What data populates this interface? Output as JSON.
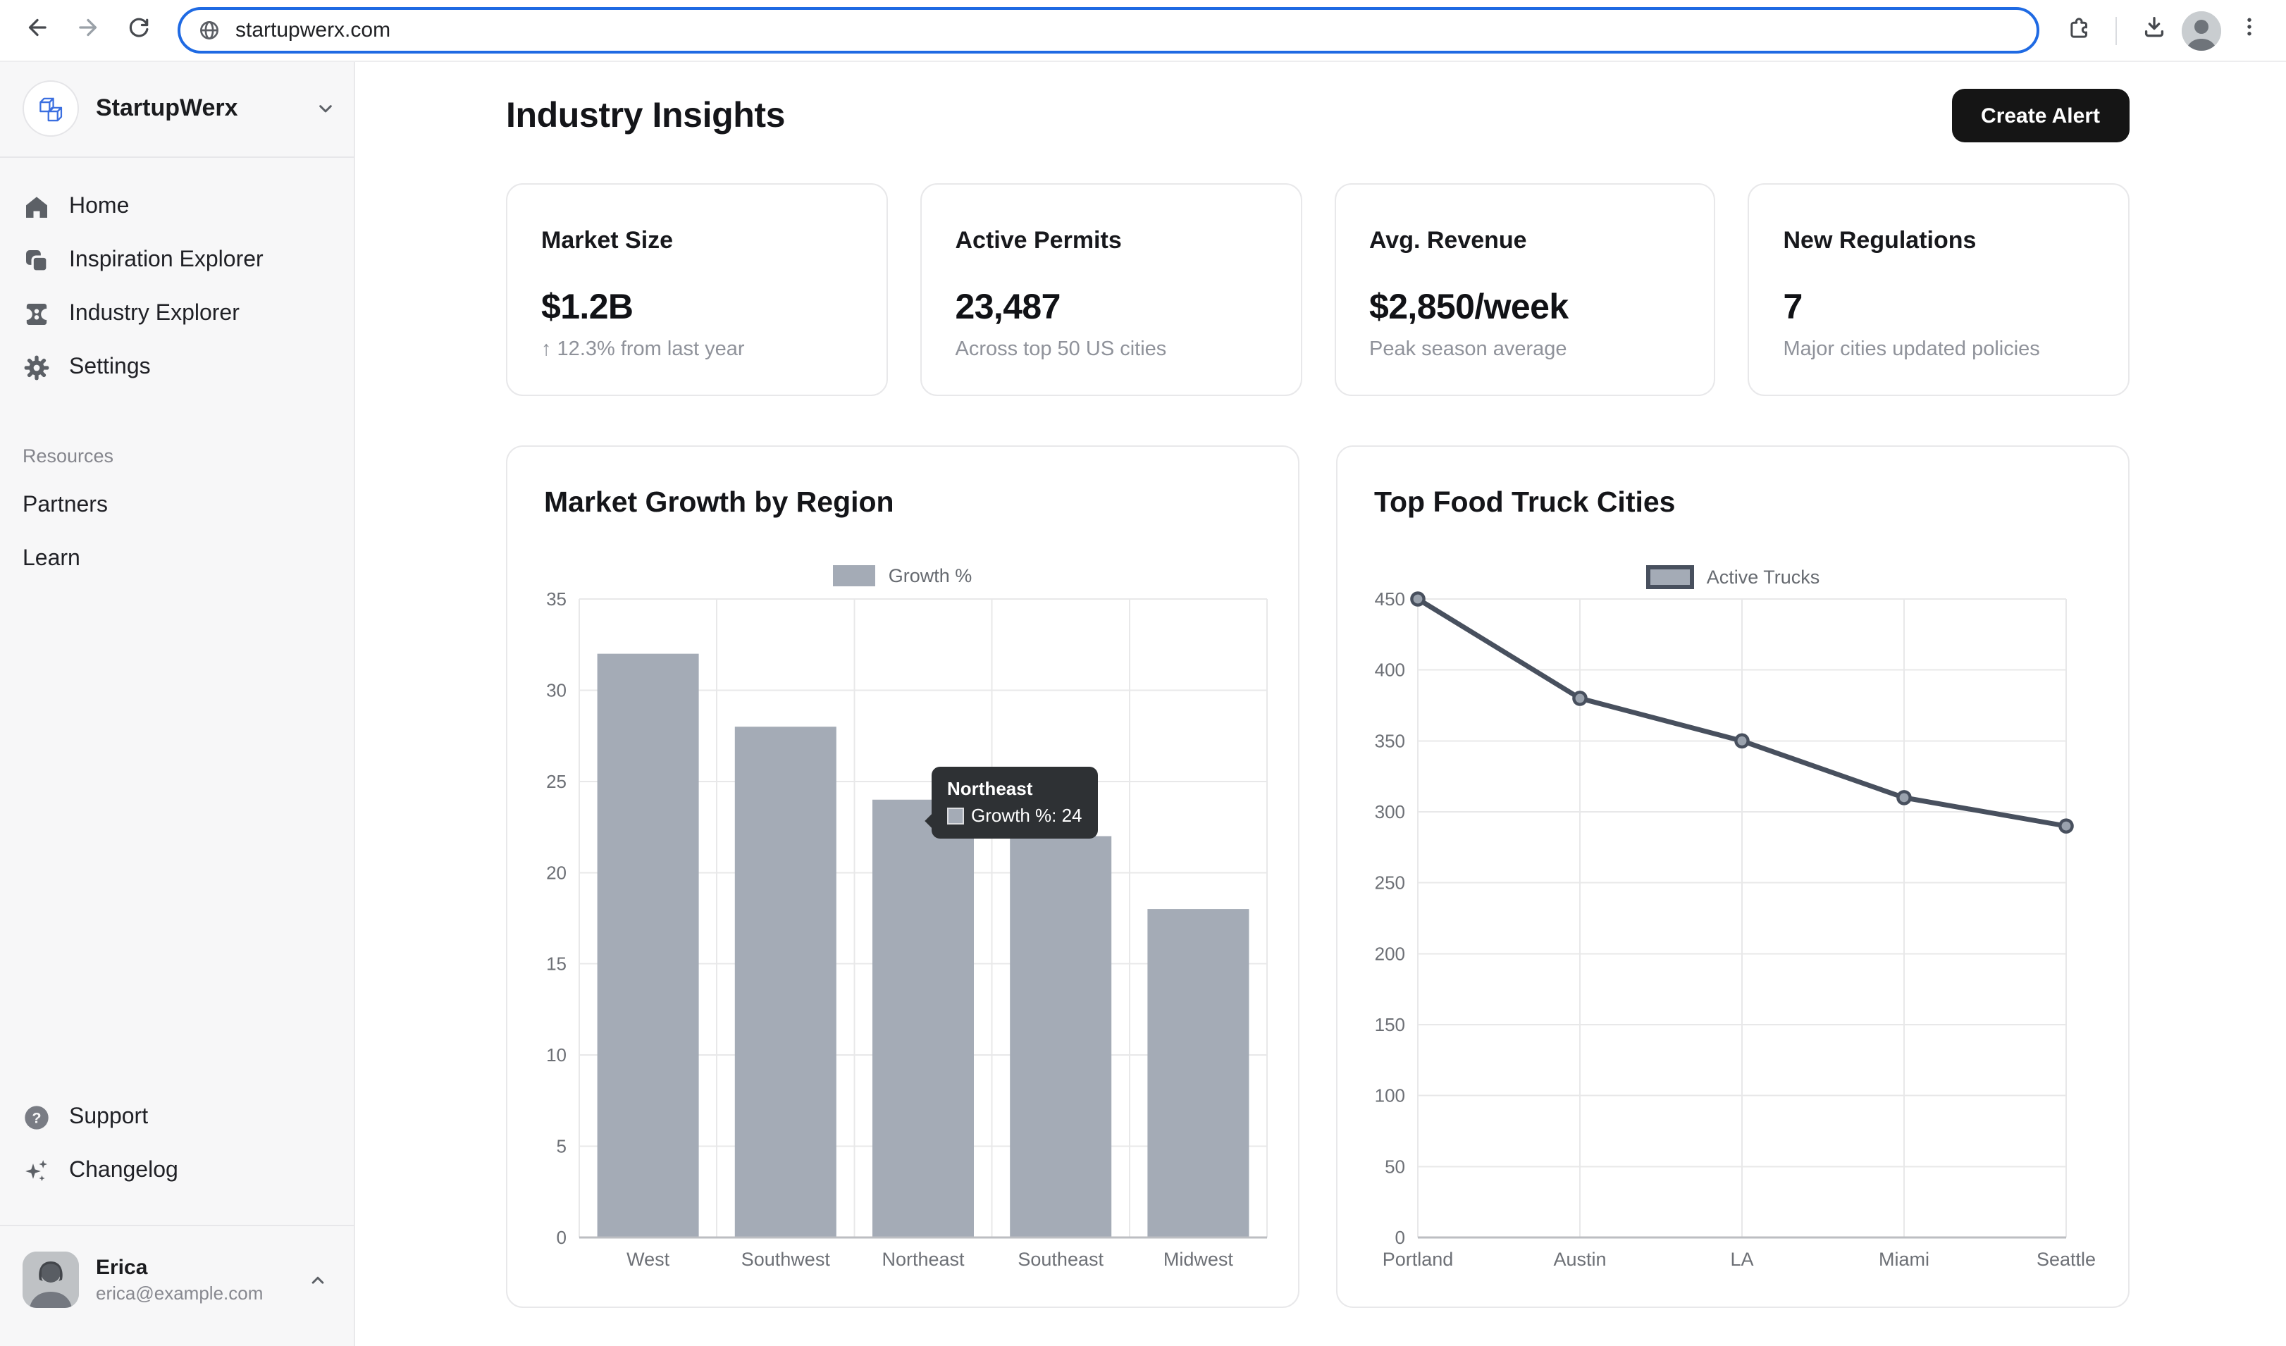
{
  "browser": {
    "url": "startupwerx.com"
  },
  "sidebar": {
    "brand": {
      "name": "StartupWerx"
    },
    "nav": [
      {
        "label": "Home",
        "icon": "home-icon"
      },
      {
        "label": "Inspiration Explorer",
        "icon": "copy-icon"
      },
      {
        "label": "Industry Explorer",
        "icon": "industry-icon"
      },
      {
        "label": "Settings",
        "icon": "gear-icon"
      }
    ],
    "resources": {
      "section_label": "Resources",
      "items": [
        {
          "label": "Partners"
        },
        {
          "label": "Learn"
        }
      ]
    },
    "footer_nav": [
      {
        "label": "Support",
        "icon": "help-icon"
      },
      {
        "label": "Changelog",
        "icon": "sparkles-icon"
      }
    ],
    "user": {
      "name": "Erica",
      "email": "erica@example.com"
    }
  },
  "header": {
    "title": "Industry Insights",
    "create_alert_label": "Create Alert"
  },
  "stats": [
    {
      "title": "Market Size",
      "value": "$1.2B",
      "subtext": "↑ 12.3% from last year"
    },
    {
      "title": "Active Permits",
      "value": "23,487",
      "subtext": "Across top 50 US cities"
    },
    {
      "title": "Avg. Revenue",
      "value": "$2,850/week",
      "subtext": "Peak season average"
    },
    {
      "title": "New Regulations",
      "value": "7",
      "subtext": "Major cities updated policies"
    }
  ],
  "chart_data": [
    {
      "type": "bar",
      "title": "Market Growth by Region",
      "legend": "Growth %",
      "categories": [
        "West",
        "Southwest",
        "Northeast",
        "Southeast",
        "Midwest"
      ],
      "values": [
        32,
        28,
        24,
        22,
        18
      ],
      "ylim": [
        0,
        35
      ],
      "ytick_step": 5,
      "grid": true,
      "legend_position": "top-center",
      "bar_color": "#a4abb6",
      "tooltip": {
        "title": "Northeast",
        "text": "Growth %: 24"
      }
    },
    {
      "type": "line",
      "title": "Top Food Truck Cities",
      "legend": "Active Trucks",
      "categories": [
        "Portland",
        "Austin",
        "LA",
        "Miami",
        "Seattle"
      ],
      "values": [
        450,
        380,
        350,
        310,
        290
      ],
      "ylim": [
        0,
        450
      ],
      "ytick_step": 50,
      "grid": true,
      "legend_position": "top-center",
      "line_color": "#48505e",
      "point_fill": "#9aa2ad"
    }
  ],
  "colors": {
    "url_focus_ring": "#1f6ae3",
    "brand_logo_blue": "#3b6fe0",
    "bar_fill": "#a4abb6",
    "line_stroke": "#48505e",
    "tooltip_bg": "#2e3134",
    "sidebar_bg": "#f7f7f8",
    "button_bg": "#151515"
  }
}
